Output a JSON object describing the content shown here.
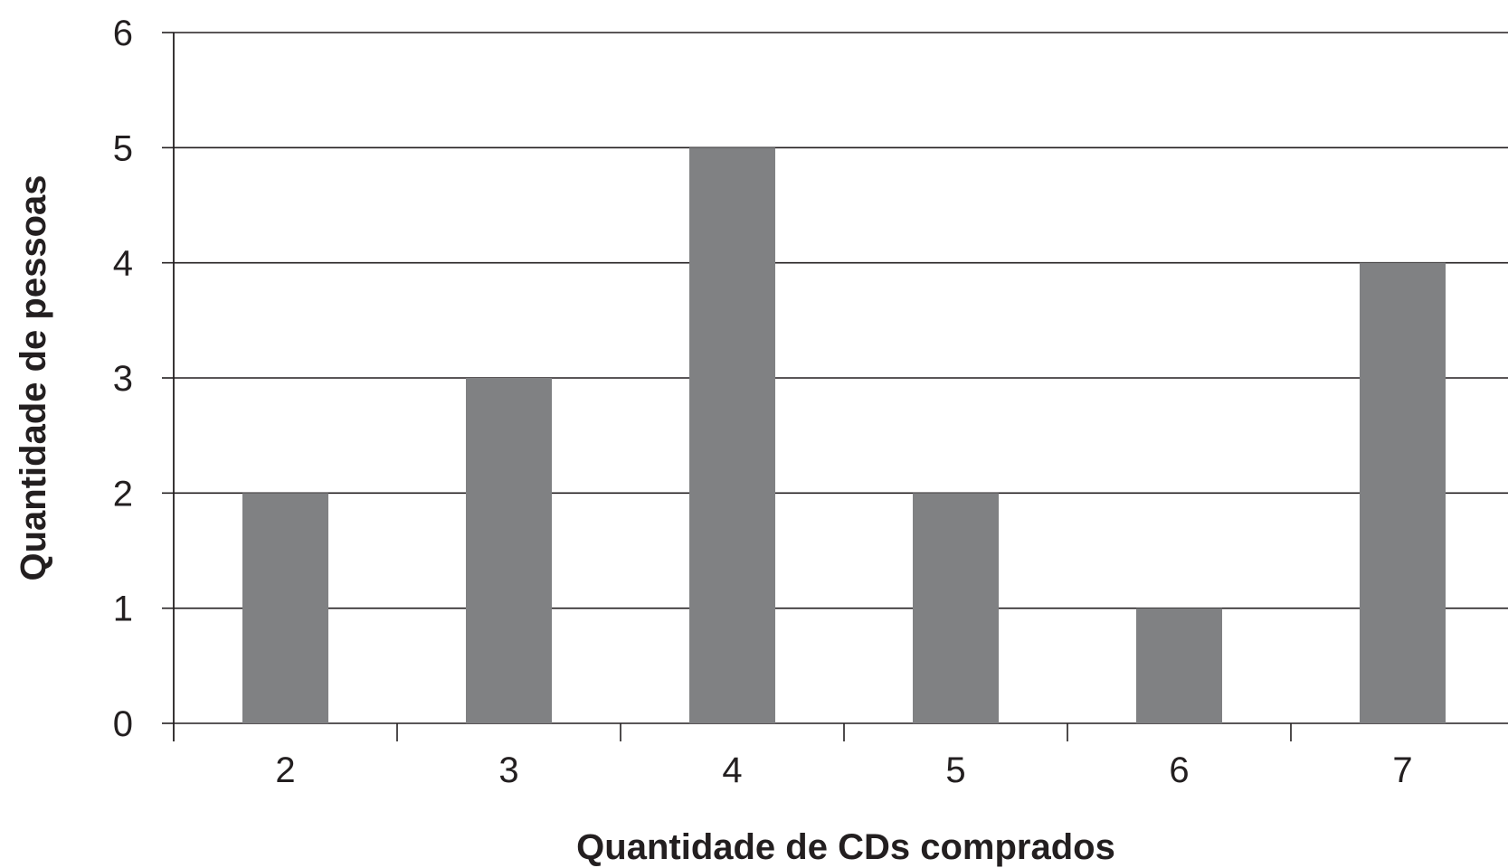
{
  "chart_data": {
    "type": "bar",
    "title": "",
    "xlabel": "Quantidade de CDs comprados",
    "ylabel": "Quantidade de pessoas",
    "categories": [
      "2",
      "3",
      "4",
      "5",
      "6",
      "7"
    ],
    "values": [
      2,
      3,
      5,
      2,
      1,
      4
    ],
    "ylim": [
      0,
      6
    ],
    "yticks": [
      0,
      1,
      2,
      3,
      4,
      5,
      6
    ],
    "grid": true,
    "legend": "none",
    "colors": {
      "bar": "#808183",
      "grid": "#231f20",
      "text": "#231f20"
    }
  }
}
